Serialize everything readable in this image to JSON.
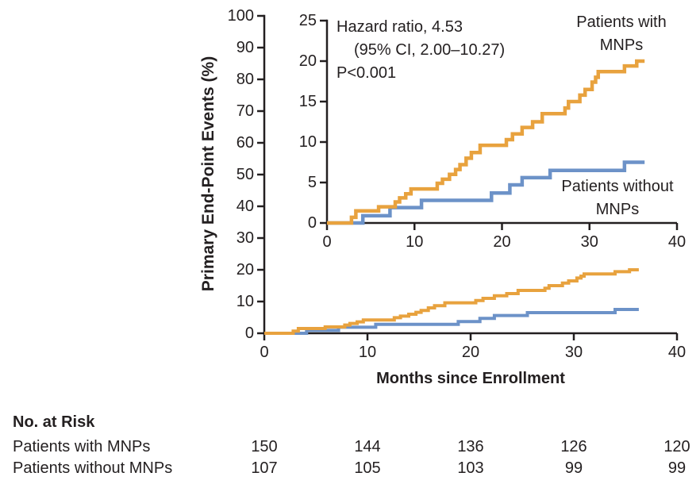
{
  "chart_data": {
    "type": "line",
    "subtype": "kaplan-meier-step",
    "main": {
      "xlabel": "Months since Enrollment",
      "ylabel": "Primary End-Point Events (%)",
      "xlim": [
        0,
        40
      ],
      "ylim": [
        0,
        100
      ],
      "xticks": [
        0,
        10,
        20,
        30,
        40
      ],
      "yticks": [
        0,
        10,
        20,
        30,
        40,
        50,
        60,
        70,
        80,
        90,
        100
      ],
      "grid": false
    },
    "inset": {
      "xlim": [
        0,
        40
      ],
      "ylim": [
        0,
        25
      ],
      "xticks": [
        0,
        10,
        20,
        30,
        40
      ],
      "yticks": [
        0,
        5,
        10,
        15,
        20,
        25
      ],
      "grid": false
    },
    "annotation": {
      "line1": "Hazard ratio, 4.53",
      "line2": "(95% CI, 2.00–10.27)",
      "line3": "P<0.001"
    },
    "legend": {
      "with_lines": [
        "Patients with",
        "MNPs"
      ],
      "without_lines": [
        "Patients without",
        "MNPs"
      ]
    },
    "colors": {
      "with_mnps": "#e8a23e",
      "without_mnps": "#6c92c8",
      "axis": "#231f20"
    },
    "series": [
      {
        "id": "with_mnps",
        "name": "Patients with MNPs",
        "color": "#e8a23e",
        "points": [
          [
            0,
            0
          ],
          [
            2.8,
            0.7
          ],
          [
            3.3,
            1.5
          ],
          [
            5.9,
            2.0
          ],
          [
            7.8,
            2.6
          ],
          [
            8.3,
            3.1
          ],
          [
            9.0,
            3.6
          ],
          [
            9.6,
            4.2
          ],
          [
            12.6,
            4.9
          ],
          [
            13.2,
            5.4
          ],
          [
            14.0,
            6.0
          ],
          [
            14.7,
            6.6
          ],
          [
            15.2,
            7.2
          ],
          [
            15.9,
            8.0
          ],
          [
            16.5,
            8.7
          ],
          [
            17.5,
            9.6
          ],
          [
            20.5,
            10.3
          ],
          [
            21.2,
            11.0
          ],
          [
            22.3,
            11.8
          ],
          [
            23.5,
            12.5
          ],
          [
            24.6,
            13.5
          ],
          [
            27.2,
            14.2
          ],
          [
            27.6,
            15.0
          ],
          [
            28.9,
            15.8
          ],
          [
            29.5,
            16.5
          ],
          [
            30.3,
            17.4
          ],
          [
            30.7,
            18.0
          ],
          [
            31.0,
            18.7
          ],
          [
            34.0,
            19.4
          ],
          [
            35.4,
            20.0
          ],
          [
            36.3,
            20.0
          ]
        ]
      },
      {
        "id": "without_mnps",
        "name": "Patients without MNPs",
        "color": "#6c92c8",
        "points": [
          [
            0,
            0
          ],
          [
            4.1,
            0.9
          ],
          [
            7.2,
            1.9
          ],
          [
            10.8,
            2.8
          ],
          [
            18.8,
            3.7
          ],
          [
            20.9,
            4.7
          ],
          [
            22.3,
            5.6
          ],
          [
            25.5,
            6.5
          ],
          [
            34.0,
            7.5
          ],
          [
            36.3,
            7.5
          ]
        ]
      }
    ],
    "risk_table": {
      "title": "No. at Risk",
      "months": [
        0,
        10,
        20,
        30,
        40
      ],
      "rows": [
        {
          "label": "Patients with MNPs",
          "values": [
            "150",
            "144",
            "136",
            "126",
            "120"
          ]
        },
        {
          "label": "Patients without MNPs",
          "values": [
            "107",
            "105",
            "103",
            "99",
            "99"
          ]
        }
      ]
    }
  }
}
